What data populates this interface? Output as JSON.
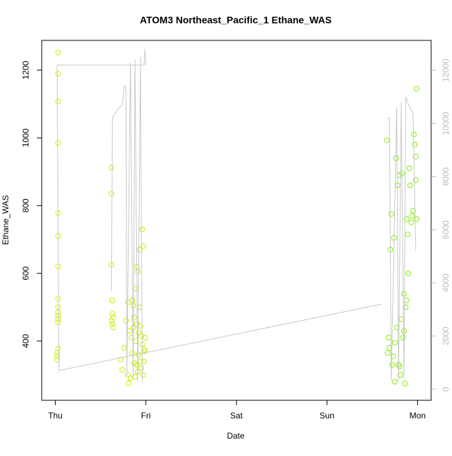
{
  "chart_data": {
    "type": "scatter",
    "title": "ATOM3 Northeast_Pacific_1 Ethane_WAS",
    "x_label": "Date",
    "y_label": "Ethane_WAS",
    "xlim": [
      -0.15,
      4.15
    ],
    "xticks": [
      {
        "value": 0,
        "label": "Thu"
      },
      {
        "value": 1,
        "label": "Fri"
      },
      {
        "value": 2,
        "label": "Sat"
      },
      {
        "value": 3,
        "label": "Sun"
      },
      {
        "value": 4,
        "label": "Mon"
      }
    ],
    "ylim": [
      225,
      1288
    ],
    "yticks": [
      400,
      600,
      800,
      1000,
      1200
    ],
    "y2lim": [
      -419,
      13127
    ],
    "y2ticks": [
      0,
      2000,
      4000,
      6000,
      8000,
      10000,
      12000
    ],
    "series": [
      {
        "type": "scatter",
        "color_range": [
          "#d9f000",
          "#80f000"
        ],
        "x": [
          0.03,
          0.03,
          0.03,
          0.03,
          0.03,
          0.03,
          0.03,
          0.03,
          0.03,
          0.03,
          0.03,
          0.03,
          0.03,
          0.03,
          0.02,
          0.02,
          0.02,
          0.62,
          0.62,
          0.62,
          0.63,
          0.63,
          0.63,
          0.64,
          0.62,
          0.63,
          0.64,
          0.72,
          0.74,
          0.76,
          0.78,
          0.8,
          0.8,
          0.81,
          0.82,
          0.83,
          0.84,
          0.85,
          0.85,
          0.86,
          0.87,
          0.87,
          0.88,
          0.89,
          0.89,
          0.9,
          0.9,
          0.91,
          0.91,
          0.92,
          0.92,
          0.93,
          0.93,
          0.94,
          0.94,
          0.95,
          0.95,
          0.96,
          0.96,
          0.97,
          0.97,
          0.98,
          0.98,
          0.99,
          0.99,
          0.86,
          0.9,
          3.66,
          3.67,
          3.68,
          3.69,
          3.7,
          3.71,
          3.72,
          3.73,
          3.74,
          3.75,
          3.76,
          3.77,
          3.78,
          3.79,
          3.8,
          3.81,
          3.82,
          3.83,
          3.84,
          3.85,
          3.86,
          3.87,
          3.88,
          3.88,
          3.89,
          3.9,
          3.91,
          3.92,
          3.93,
          3.94,
          3.95,
          3.96,
          3.97,
          3.98,
          3.98,
          3.99,
          3.99,
          3.75,
          3.8,
          3.85
        ],
        "values": [
          1252,
          1190,
          1108,
          985,
          778,
          710,
          620,
          525,
          500,
          485,
          475,
          465,
          455,
          378,
          365,
          355,
          345,
          912,
          835,
          625,
          520,
          520,
          480,
          470,
          460,
          450,
          440,
          345,
          315,
          380,
          460,
          300,
          515,
          275,
          430,
          290,
          410,
          520,
          365,
          440,
          335,
          470,
          295,
          555,
          400,
          330,
          450,
          605,
          310,
          425,
          360,
          670,
          500,
          340,
          445,
          320,
          415,
          730,
          390,
          680,
          300,
          375,
          340,
          370,
          410,
          505,
          620,
          993,
          365,
          410,
          380,
          670,
          775,
          330,
          355,
          705,
          280,
          940,
          440,
          860,
          330,
          890,
          300,
          465,
          895,
          410,
          540,
          275,
          500,
          520,
          760,
          715,
          600,
          910,
          860,
          750,
          770,
          785,
          1010,
          980,
          945,
          875,
          1145,
          760,
          395,
          325,
          430
        ]
      },
      {
        "type": "line",
        "axis": "y2",
        "color": "#c8c8c8",
        "x": [
          0.02,
          0.98,
          0.99,
          1.0,
          null,
          0.02,
          0.04,
          3.6,
          null,
          0.62,
          0.63,
          0.68,
          0.74,
          0.76,
          0.78,
          0.79,
          0.83,
          0.86,
          0.88,
          0.91,
          0.94,
          0.96,
          null,
          3.66,
          3.69,
          3.71,
          3.77,
          3.79,
          3.82,
          3.85,
          3.87,
          3.9,
          3.95,
          3.98
        ],
        "values": [
          12200,
          12200,
          12800,
          12200,
          null,
          12200,
          700,
          3200,
          null,
          3700,
          10200,
          10500,
          10700,
          11400,
          11400,
          500,
          12300,
          400,
          12400,
          300,
          12500,
          300,
          null,
          10200,
          10200,
          300,
          10600,
          300,
          10800,
          400,
          11000,
          10700,
          10400,
          5200
        ]
      }
    ]
  }
}
